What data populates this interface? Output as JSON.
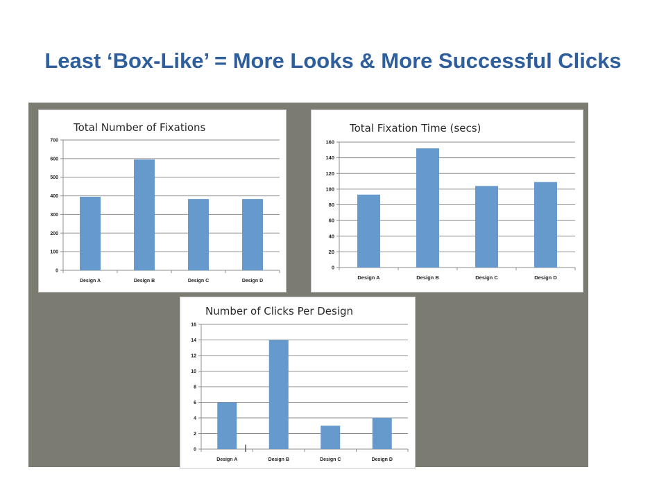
{
  "slide": {
    "title": "Least ‘Box-Like’ = More Looks & More Successful Clicks"
  },
  "colors": {
    "title": "#2e5e9c",
    "bar": "#6699cc",
    "backdrop": "#7b7b72",
    "grid": "#8c8c8c"
  },
  "chart_data": [
    {
      "type": "bar",
      "title": "Total Number of Fixations",
      "xlabel": "",
      "ylabel": "",
      "categories": [
        "Design A",
        "Design B",
        "Design C",
        "Design D"
      ],
      "values": [
        395,
        595,
        383,
        383
      ],
      "ylim": [
        0,
        700
      ],
      "yticks": [
        0,
        100,
        200,
        300,
        400,
        500,
        600,
        700
      ],
      "grid": true
    },
    {
      "type": "bar",
      "title": "Total Fixation Time (secs)",
      "xlabel": "",
      "ylabel": "",
      "categories": [
        "Design A",
        "Design B",
        "Design C",
        "Design D"
      ],
      "values": [
        93,
        152,
        104,
        109
      ],
      "ylim": [
        0,
        160
      ],
      "yticks": [
        0,
        20,
        40,
        60,
        80,
        100,
        120,
        140,
        160
      ],
      "grid": true
    },
    {
      "type": "bar",
      "title": "Number of Clicks Per Design",
      "xlabel": "",
      "ylabel": "",
      "categories": [
        "Design A",
        "Design B",
        "Design C",
        "Design D"
      ],
      "values": [
        6,
        14,
        3,
        4
      ],
      "ylim": [
        0,
        16
      ],
      "yticks": [
        0,
        2,
        4,
        6,
        8,
        10,
        12,
        14,
        16
      ],
      "grid": true
    }
  ]
}
